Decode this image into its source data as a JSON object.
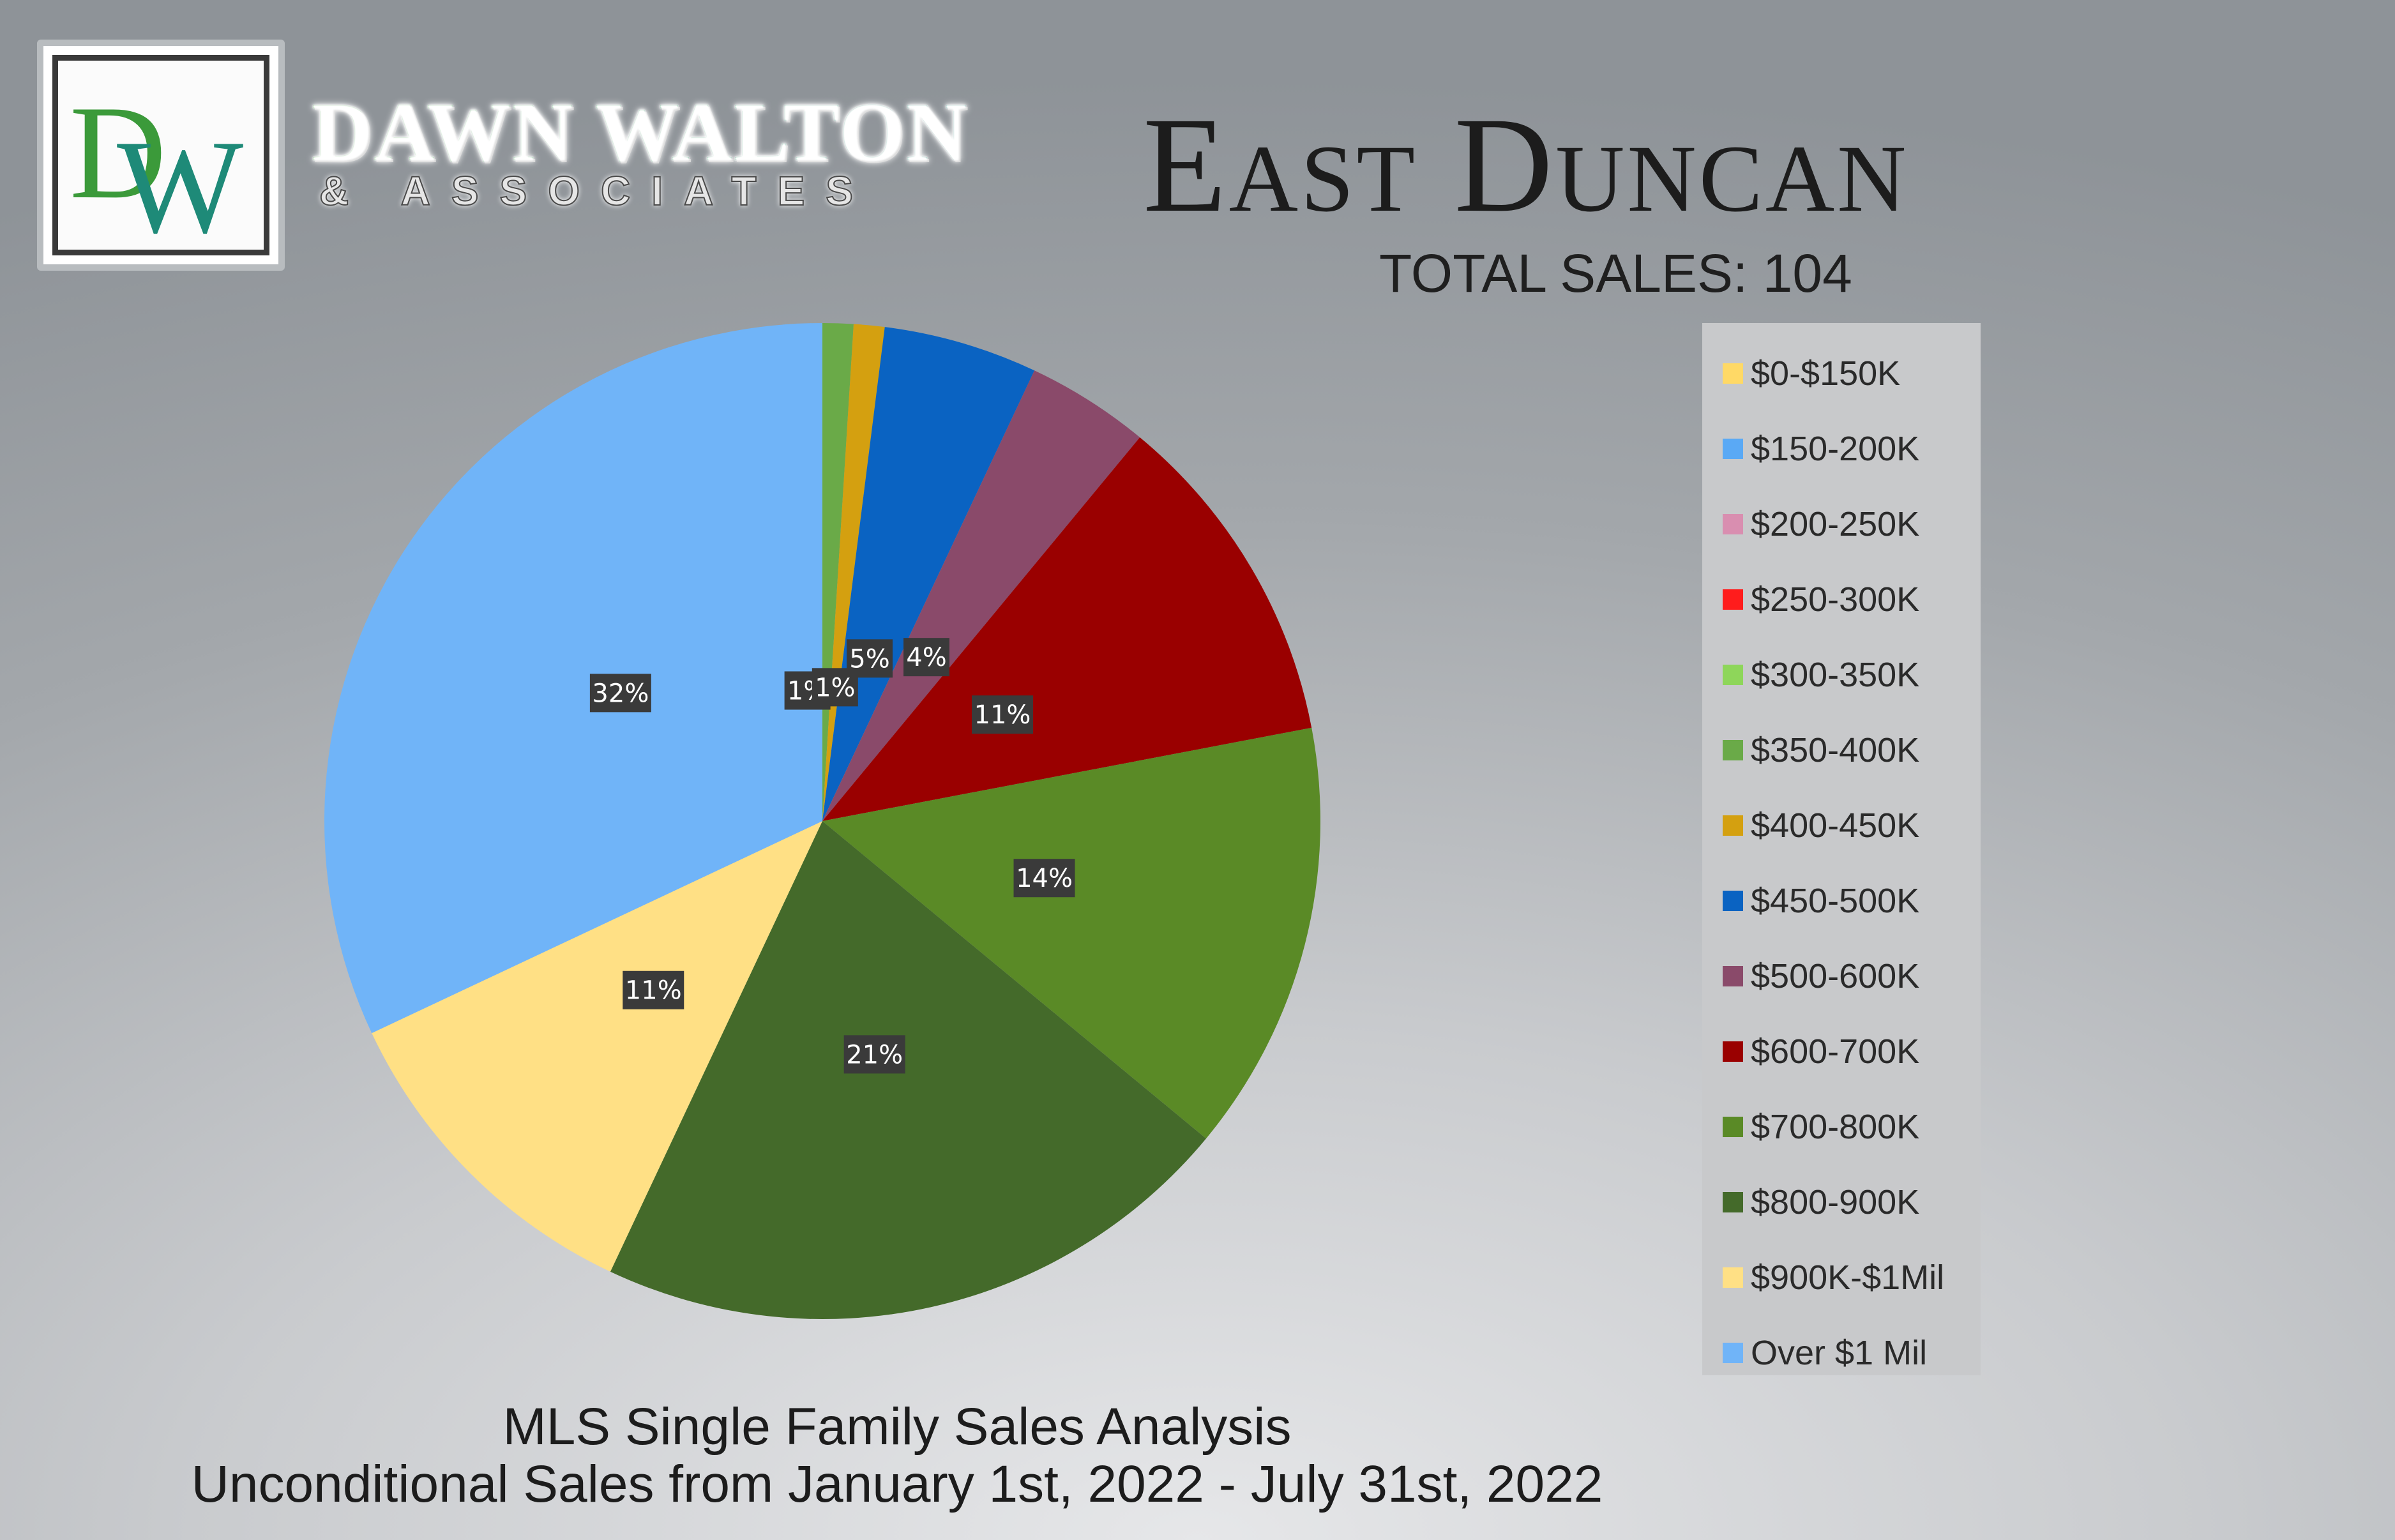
{
  "brand": {
    "monogram": "DW",
    "name": "DAWN WALTON",
    "sub": "& ASSOCIATES",
    "colors": {
      "green": "#3b9a3a",
      "teal": "#1e7f74"
    }
  },
  "header": {
    "title": "East Duncan",
    "total_sales": "TOTAL SALES: 104"
  },
  "footer": {
    "line1": "MLS Single Family Sales Analysis",
    "line2": "Unconditional Sales from January 1st, 2022 - July 31st, 2022"
  },
  "chart_data": {
    "type": "pie",
    "categories": [
      "$0-$150K",
      "$150-200K",
      "$200-250K",
      "$250-300K",
      "$300-350K",
      "$350-400K",
      "$400-450K",
      "$450-500K",
      "$500-600K",
      "$600-700K",
      "$700-800K",
      "$800-900K",
      "$900K-$1Mil",
      "Over $1 Mil"
    ],
    "values": [
      0,
      0,
      0,
      0,
      0,
      1,
      1,
      5,
      4,
      11,
      14,
      21,
      11,
      32
    ],
    "value_labels": [
      "",
      "",
      "",
      "",
      "",
      "1%",
      "1%",
      "5%",
      "4%",
      "11%",
      "14%",
      "21%",
      "11%",
      "32%"
    ],
    "colors": [
      "#ffd966",
      "#5aa9f5",
      "#d98eb0",
      "#ff1c1c",
      "#8ed65a",
      "#6aaa48",
      "#d4a010",
      "#0a63c2",
      "#8a4a6a",
      "#9a0000",
      "#5a8a26",
      "#446a2a",
      "#ffe085",
      "#70b4f8"
    ],
    "legend_position": "right",
    "start_angle_deg": 0,
    "direction": "clockwise"
  }
}
